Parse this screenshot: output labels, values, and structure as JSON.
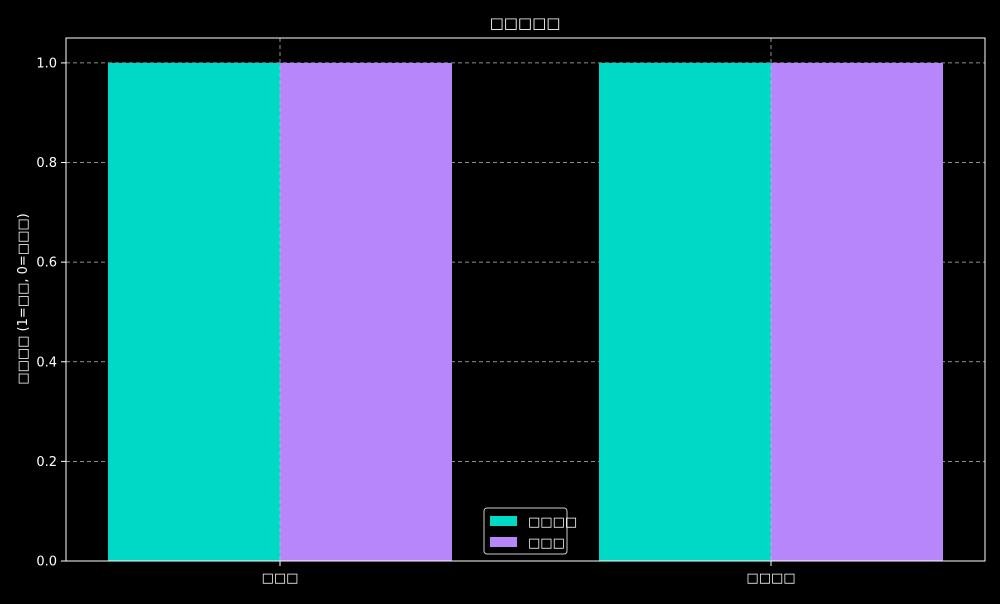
{
  "chart_data": {
    "type": "bar",
    "title": "□□□□□",
    "xlabel": "",
    "ylabel": "□□□□ (1=□□, 0=□□□)",
    "categories": [
      "□□□",
      "□□□□"
    ],
    "series": [
      {
        "name": "□□□□",
        "values": [
          1.0,
          1.0
        ],
        "color": "#00d9c5"
      },
      {
        "name": "□□□",
        "values": [
          1.0,
          1.0
        ],
        "color": "#b886fb"
      }
    ],
    "ylim": [
      0,
      1.05
    ],
    "yticks": [
      0.0,
      0.2,
      0.4,
      0.6,
      0.8,
      1.0
    ],
    "ytick_labels": [
      "0.0",
      "0.2",
      "0.4",
      "0.6",
      "0.8",
      "1.0"
    ],
    "grid": true,
    "legend_position": "bottom-center",
    "colors": {
      "background": "#000000",
      "foreground": "#ffffff",
      "grid": "#bbbbbb"
    }
  }
}
